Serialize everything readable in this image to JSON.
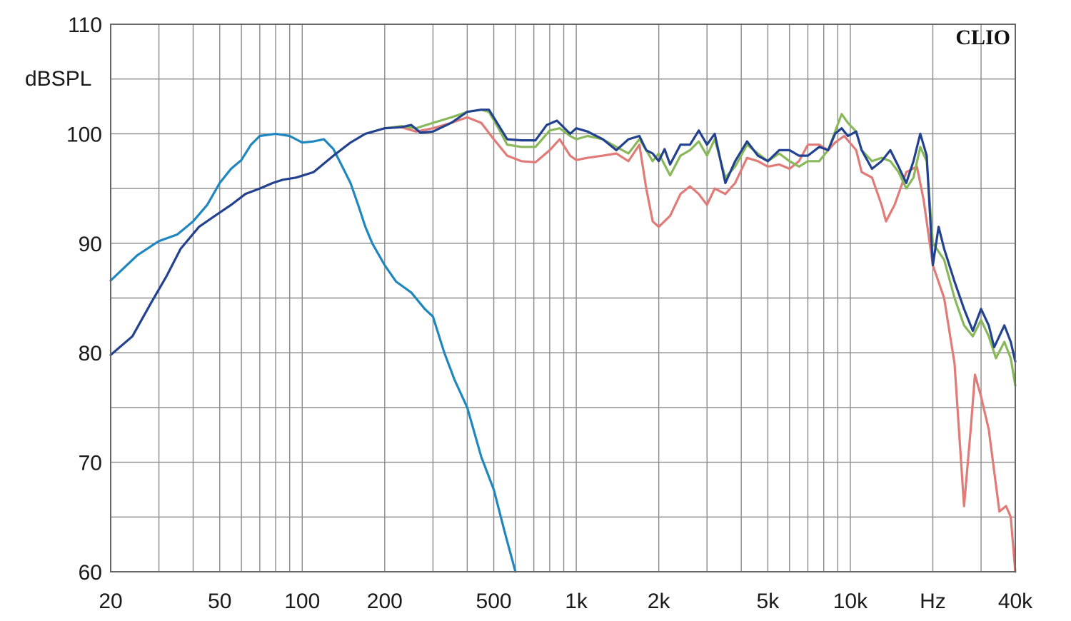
{
  "chart_data": {
    "type": "line",
    "title": "",
    "brand": "CLIO",
    "xlabel": "",
    "ylabel": "dBSPL",
    "xscale": "log",
    "xlim": [
      20,
      40000
    ],
    "ylim": [
      60,
      110
    ],
    "grid": true,
    "legend": "none",
    "xticks": [
      {
        "value": 20,
        "label": "20"
      },
      {
        "value": 50,
        "label": "50"
      },
      {
        "value": 100,
        "label": "100"
      },
      {
        "value": 200,
        "label": "200"
      },
      {
        "value": 500,
        "label": "500"
      },
      {
        "value": 1000,
        "label": "1k"
      },
      {
        "value": 2000,
        "label": "2k"
      },
      {
        "value": 5000,
        "label": "5k"
      },
      {
        "value": 10000,
        "label": "10k"
      },
      {
        "value": 20000,
        "label": "Hz"
      },
      {
        "value": 40000,
        "label": "40k"
      }
    ],
    "yticks": [
      {
        "value": 60,
        "label": "60"
      },
      {
        "value": 70,
        "label": "70"
      },
      {
        "value": 80,
        "label": "80"
      },
      {
        "value": 90,
        "label": "90"
      },
      {
        "value": 100,
        "label": "100"
      },
      {
        "value": 110,
        "label": "110"
      }
    ],
    "series": [
      {
        "color": "#1f86c0",
        "points": [
          [
            20,
            86.6
          ],
          [
            25,
            88.9
          ],
          [
            30,
            90.2
          ],
          [
            35,
            90.8
          ],
          [
            40,
            92.0
          ],
          [
            45,
            93.5
          ],
          [
            50,
            95.5
          ],
          [
            55,
            96.8
          ],
          [
            60,
            97.6
          ],
          [
            65,
            99.0
          ],
          [
            70,
            99.8
          ],
          [
            80,
            100.0
          ],
          [
            90,
            99.8
          ],
          [
            100,
            99.2
          ],
          [
            110,
            99.3
          ],
          [
            120,
            99.5
          ],
          [
            130,
            98.6
          ],
          [
            140,
            97.0
          ],
          [
            150,
            95.5
          ],
          [
            160,
            93.5
          ],
          [
            170,
            91.5
          ],
          [
            180,
            90.0
          ],
          [
            200,
            88.0
          ],
          [
            220,
            86.5
          ],
          [
            250,
            85.5
          ],
          [
            280,
            84.0
          ],
          [
            300,
            83.3
          ],
          [
            330,
            80.0
          ],
          [
            360,
            77.5
          ],
          [
            400,
            75.0
          ],
          [
            450,
            70.5
          ],
          [
            500,
            67.5
          ],
          [
            550,
            63.5
          ],
          [
            600,
            60.0
          ]
        ]
      },
      {
        "color": "#e07b78",
        "points": [
          [
            200,
            100.5
          ],
          [
            230,
            100.6
          ],
          [
            260,
            100.2
          ],
          [
            300,
            100.5
          ],
          [
            350,
            101.0
          ],
          [
            400,
            101.5
          ],
          [
            450,
            101.0
          ],
          [
            500,
            99.5
          ],
          [
            560,
            98.0
          ],
          [
            630,
            97.5
          ],
          [
            710,
            97.4
          ],
          [
            800,
            98.5
          ],
          [
            870,
            99.5
          ],
          [
            950,
            98.0
          ],
          [
            1000,
            97.6
          ],
          [
            1100,
            97.8
          ],
          [
            1250,
            98.0
          ],
          [
            1400,
            98.2
          ],
          [
            1550,
            97.5
          ],
          [
            1700,
            99.0
          ],
          [
            1800,
            95.0
          ],
          [
            1900,
            92.0
          ],
          [
            2000,
            91.5
          ],
          [
            2200,
            92.5
          ],
          [
            2400,
            94.5
          ],
          [
            2600,
            95.2
          ],
          [
            2800,
            94.5
          ],
          [
            3000,
            93.5
          ],
          [
            3200,
            95.0
          ],
          [
            3500,
            94.5
          ],
          [
            3800,
            95.5
          ],
          [
            4200,
            97.8
          ],
          [
            4600,
            97.5
          ],
          [
            5000,
            97.0
          ],
          [
            5500,
            97.2
          ],
          [
            6000,
            96.8
          ],
          [
            6500,
            97.5
          ],
          [
            7000,
            99.0
          ],
          [
            7700,
            99.0
          ],
          [
            8300,
            98.5
          ],
          [
            8800,
            99.2
          ],
          [
            9500,
            99.8
          ],
          [
            10500,
            98.5
          ],
          [
            11000,
            96.5
          ],
          [
            12000,
            96.0
          ],
          [
            13000,
            93.5
          ],
          [
            13500,
            92.0
          ],
          [
            14500,
            93.5
          ],
          [
            16000,
            96.5
          ],
          [
            17500,
            97.0
          ],
          [
            18500,
            94.0
          ],
          [
            20000,
            88.0
          ],
          [
            22000,
            85.0
          ],
          [
            24000,
            79.0
          ],
          [
            26000,
            66.0
          ],
          [
            27500,
            73.0
          ],
          [
            28500,
            78.0
          ],
          [
            30000,
            76.0
          ],
          [
            32000,
            73.0
          ],
          [
            35000,
            65.5
          ],
          [
            37000,
            66.0
          ],
          [
            38500,
            65.0
          ],
          [
            40000,
            60.0
          ]
        ]
      },
      {
        "color": "#88b85a",
        "points": [
          [
            200,
            100.5
          ],
          [
            230,
            100.7
          ],
          [
            260,
            100.5
          ],
          [
            300,
            101.0
          ],
          [
            350,
            101.5
          ],
          [
            400,
            102.0
          ],
          [
            450,
            102.2
          ],
          [
            480,
            102.0
          ],
          [
            520,
            100.5
          ],
          [
            560,
            99.0
          ],
          [
            630,
            98.8
          ],
          [
            710,
            98.8
          ],
          [
            800,
            100.3
          ],
          [
            870,
            100.5
          ],
          [
            950,
            99.8
          ],
          [
            1000,
            99.5
          ],
          [
            1100,
            99.8
          ],
          [
            1250,
            99.5
          ],
          [
            1400,
            98.8
          ],
          [
            1550,
            98.2
          ],
          [
            1700,
            99.5
          ],
          [
            1800,
            98.5
          ],
          [
            1900,
            97.5
          ],
          [
            2000,
            98.2
          ],
          [
            2200,
            96.2
          ],
          [
            2400,
            98.0
          ],
          [
            2600,
            98.5
          ],
          [
            2800,
            99.3
          ],
          [
            3000,
            98.0
          ],
          [
            3200,
            99.5
          ],
          [
            3500,
            96.0
          ],
          [
            3800,
            97.0
          ],
          [
            4200,
            99.0
          ],
          [
            4600,
            98.2
          ],
          [
            5000,
            97.5
          ],
          [
            5500,
            98.2
          ],
          [
            6000,
            97.5
          ],
          [
            6500,
            97.0
          ],
          [
            7000,
            97.5
          ],
          [
            7700,
            97.5
          ],
          [
            8300,
            98.5
          ],
          [
            8800,
            100.2
          ],
          [
            9300,
            101.8
          ],
          [
            9800,
            101.0
          ],
          [
            10500,
            100.2
          ],
          [
            11000,
            98.5
          ],
          [
            12000,
            97.5
          ],
          [
            13000,
            97.8
          ],
          [
            14000,
            97.5
          ],
          [
            15000,
            96.5
          ],
          [
            16000,
            95.0
          ],
          [
            17000,
            96.0
          ],
          [
            18000,
            98.8
          ],
          [
            19000,
            97.5
          ],
          [
            20000,
            90.0
          ],
          [
            22000,
            88.5
          ],
          [
            24000,
            85.0
          ],
          [
            26000,
            82.5
          ],
          [
            28000,
            81.5
          ],
          [
            30000,
            83.0
          ],
          [
            32000,
            81.5
          ],
          [
            34000,
            79.5
          ],
          [
            36500,
            81.0
          ],
          [
            38500,
            79.5
          ],
          [
            40000,
            77.0
          ]
        ]
      },
      {
        "color": "#22418f",
        "points": [
          [
            20,
            79.8
          ],
          [
            24,
            81.5
          ],
          [
            28,
            84.5
          ],
          [
            32,
            87.0
          ],
          [
            36,
            89.5
          ],
          [
            42,
            91.5
          ],
          [
            48,
            92.5
          ],
          [
            55,
            93.5
          ],
          [
            62,
            94.5
          ],
          [
            70,
            95.0
          ],
          [
            78,
            95.5
          ],
          [
            85,
            95.8
          ],
          [
            95,
            96.0
          ],
          [
            110,
            96.5
          ],
          [
            130,
            98.0
          ],
          [
            150,
            99.2
          ],
          [
            170,
            100.0
          ],
          [
            200,
            100.5
          ],
          [
            230,
            100.6
          ],
          [
            250,
            100.8
          ],
          [
            270,
            100.1
          ],
          [
            300,
            100.2
          ],
          [
            350,
            101.0
          ],
          [
            400,
            102.0
          ],
          [
            450,
            102.2
          ],
          [
            480,
            102.2
          ],
          [
            520,
            100.8
          ],
          [
            560,
            99.5
          ],
          [
            630,
            99.4
          ],
          [
            710,
            99.4
          ],
          [
            780,
            100.8
          ],
          [
            850,
            101.2
          ],
          [
            950,
            100.0
          ],
          [
            1000,
            100.5
          ],
          [
            1100,
            100.2
          ],
          [
            1250,
            99.5
          ],
          [
            1400,
            98.5
          ],
          [
            1550,
            99.5
          ],
          [
            1700,
            99.8
          ],
          [
            1800,
            98.5
          ],
          [
            1900,
            98.2
          ],
          [
            2000,
            97.5
          ],
          [
            2100,
            98.6
          ],
          [
            2200,
            97.2
          ],
          [
            2400,
            99.0
          ],
          [
            2600,
            99.0
          ],
          [
            2800,
            100.3
          ],
          [
            3000,
            99.0
          ],
          [
            3200,
            100.0
          ],
          [
            3500,
            95.5
          ],
          [
            3800,
            97.5
          ],
          [
            4200,
            99.3
          ],
          [
            4600,
            98.0
          ],
          [
            5000,
            97.5
          ],
          [
            5500,
            98.5
          ],
          [
            6000,
            98.5
          ],
          [
            6500,
            98.0
          ],
          [
            7000,
            98.0
          ],
          [
            7700,
            98.8
          ],
          [
            8300,
            98.5
          ],
          [
            8800,
            100.0
          ],
          [
            9300,
            100.5
          ],
          [
            9800,
            99.8
          ],
          [
            10500,
            100.2
          ],
          [
            11000,
            98.5
          ],
          [
            12000,
            96.8
          ],
          [
            13000,
            97.5
          ],
          [
            14000,
            98.5
          ],
          [
            15000,
            97.0
          ],
          [
            16000,
            95.5
          ],
          [
            17000,
            97.5
          ],
          [
            18000,
            100.0
          ],
          [
            19000,
            98.0
          ],
          [
            20000,
            88.0
          ],
          [
            21000,
            91.5
          ],
          [
            22000,
            89.5
          ],
          [
            24000,
            86.5
          ],
          [
            26000,
            84.0
          ],
          [
            28000,
            82.0
          ],
          [
            30000,
            84.0
          ],
          [
            32000,
            82.5
          ],
          [
            33500,
            80.5
          ],
          [
            36500,
            82.5
          ],
          [
            38500,
            81.0
          ],
          [
            40000,
            79.2
          ]
        ]
      }
    ]
  }
}
